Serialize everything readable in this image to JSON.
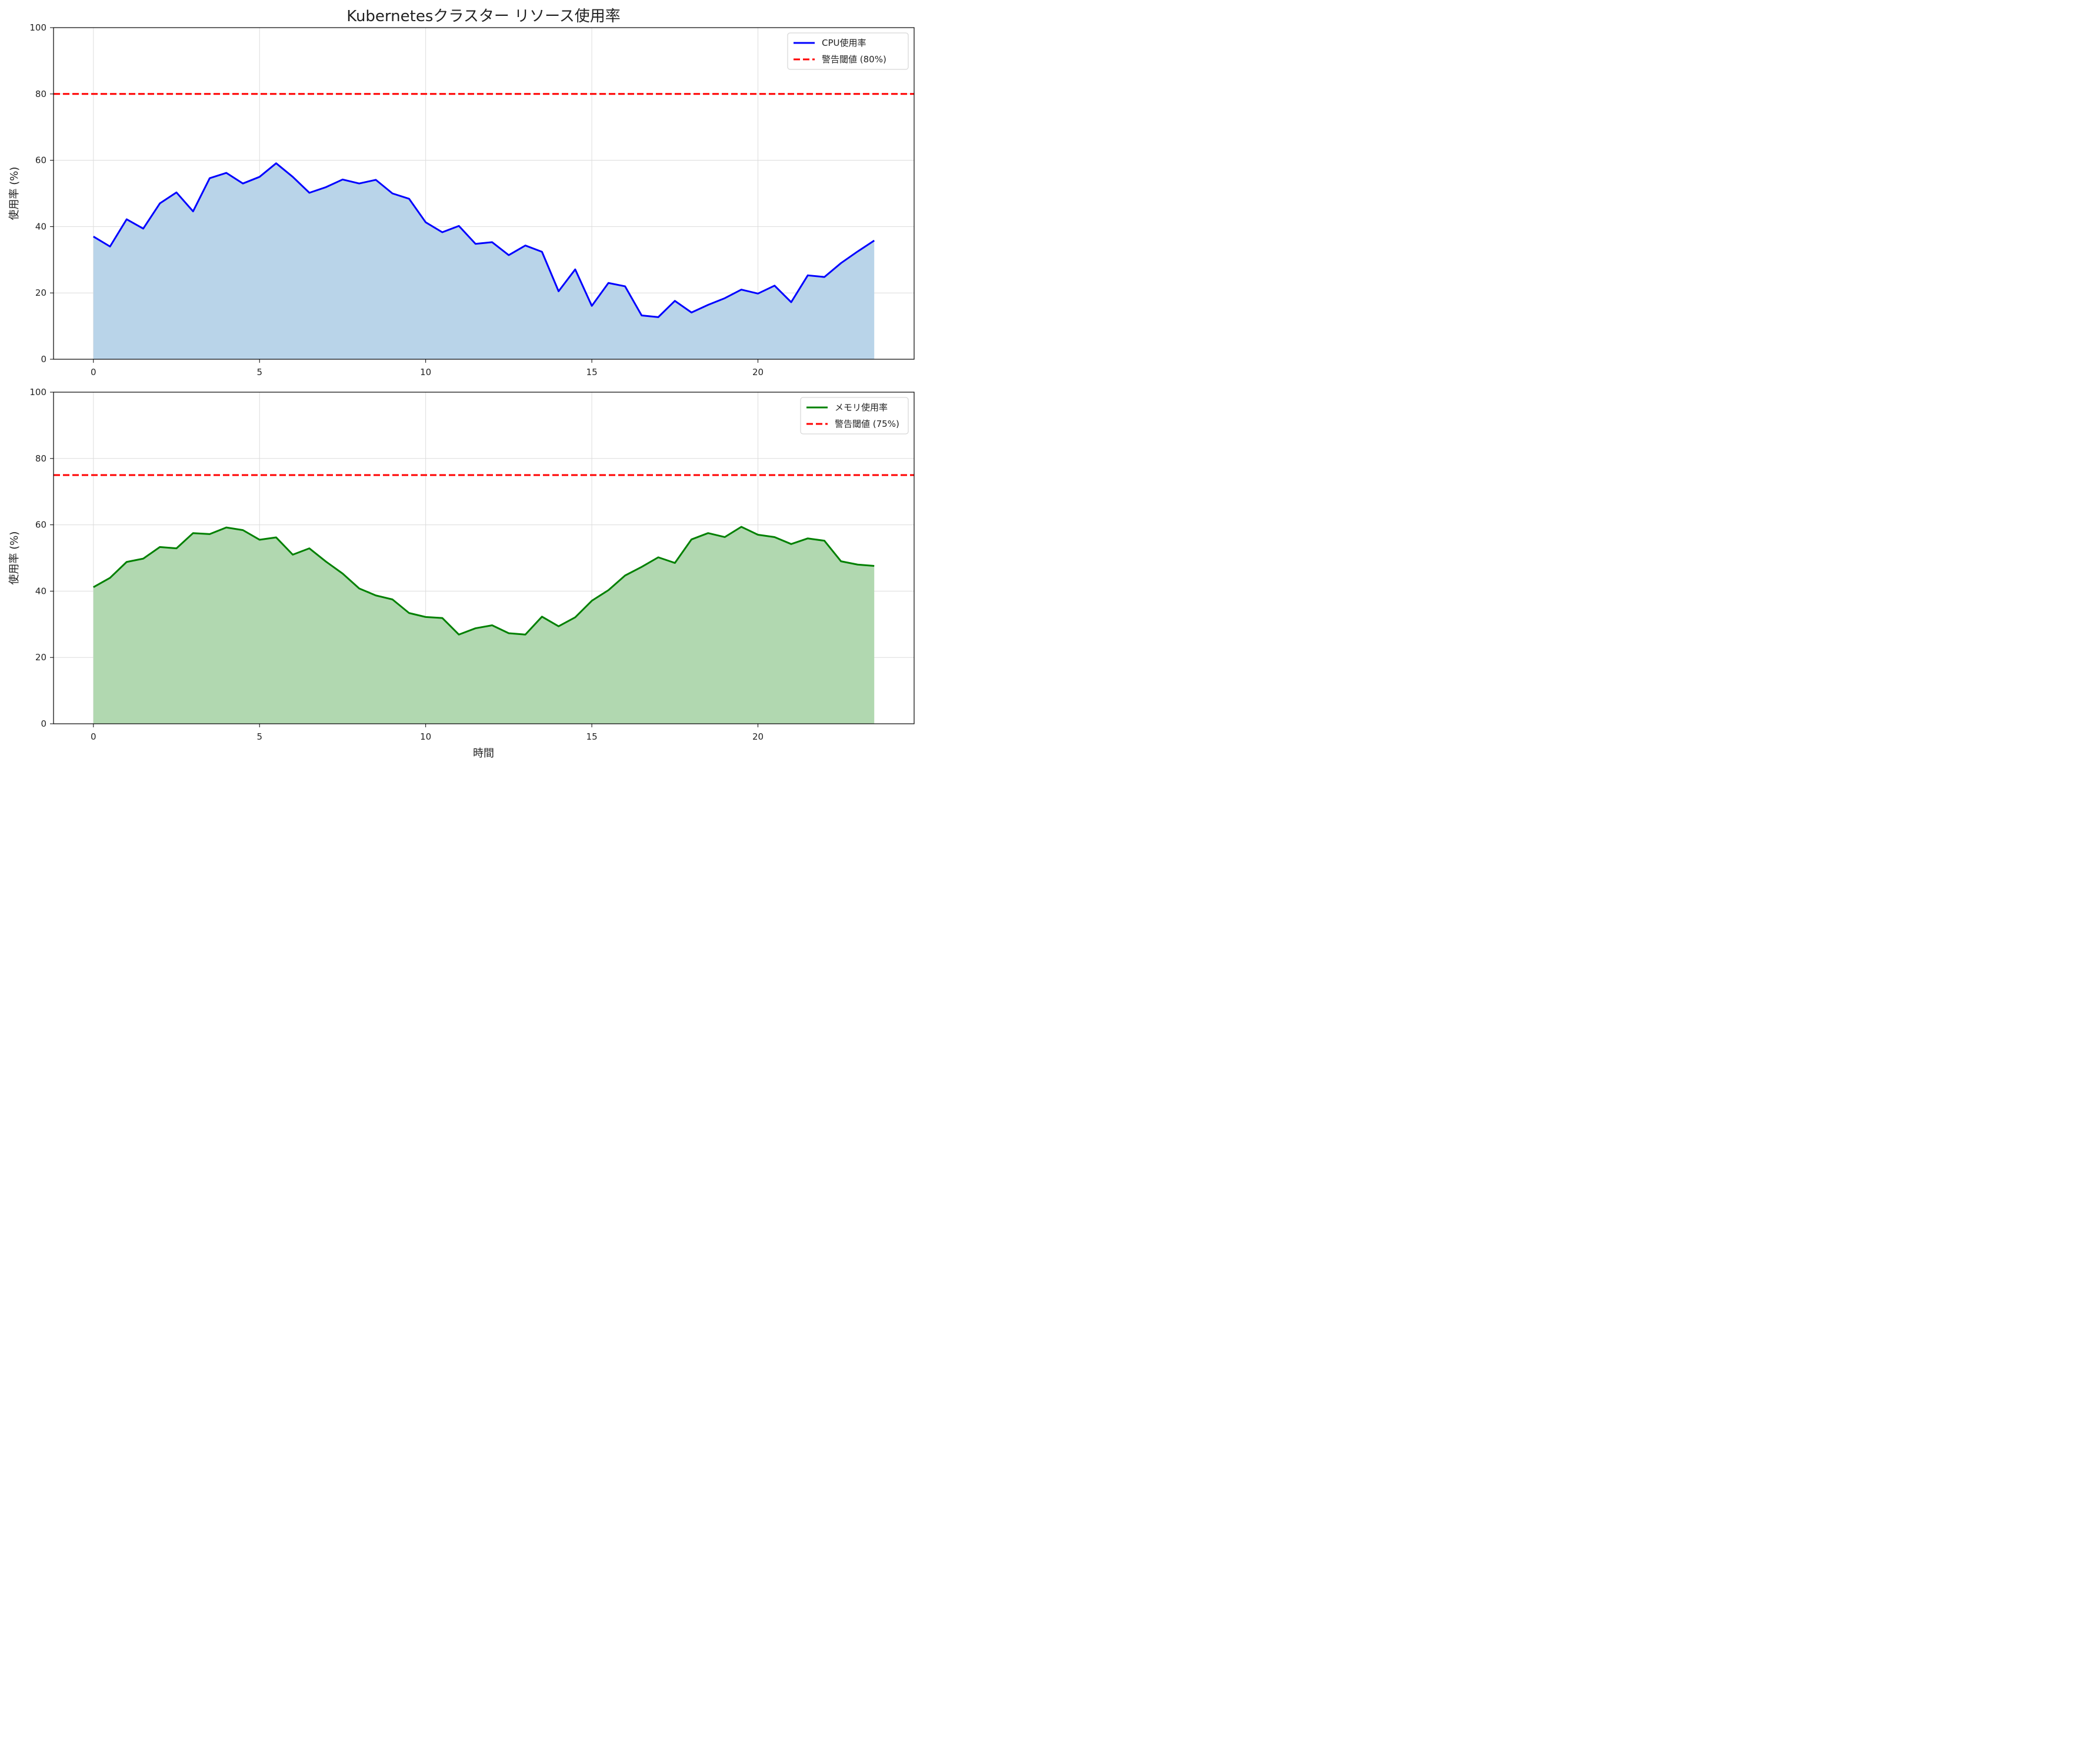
{
  "title": "Kubernetesクラスター リソース使用率",
  "xlabel": "時間",
  "chart_data": [
    {
      "type": "area",
      "ylabel": "使用率 (%)",
      "xlim": [
        -1.2,
        24.7
      ],
      "ylim": [
        0,
        100
      ],
      "xticks": [
        0,
        5,
        10,
        15,
        20
      ],
      "yticks": [
        0,
        20,
        40,
        60,
        80,
        100
      ],
      "grid": true,
      "legend_position": "top-right",
      "series": {
        "name": "CPU使用率",
        "color": "#0000ff",
        "fill_color": "#b9d4e9",
        "x": [
          0,
          0.5,
          1,
          1.5,
          2,
          2.5,
          3,
          3.5,
          4,
          4.5,
          5,
          5.5,
          6,
          6.5,
          7,
          7.5,
          8,
          8.5,
          9,
          9.5,
          10,
          10.5,
          11,
          11.5,
          12,
          12.5,
          13,
          13.5,
          14,
          14.5,
          15,
          15.5,
          16,
          16.5,
          17,
          17.5,
          18,
          18.5,
          19,
          19.5,
          20,
          20.5,
          21,
          21.5,
          22,
          22.5,
          23,
          23.5
        ],
        "y": [
          37,
          34,
          42.2,
          39.4,
          47,
          50.3,
          44.6,
          54.6,
          56.2,
          53,
          55,
          59.1,
          55,
          50.2,
          51.9,
          54.2,
          53,
          54.1,
          50,
          48.4,
          41.3,
          38.3,
          40.2,
          34.8,
          35.3,
          31.4,
          34.3,
          32.4,
          20.5,
          27.1,
          16.1,
          23,
          22,
          13.2,
          12.7,
          17.6,
          14.1,
          16.4,
          18.4,
          21,
          19.8,
          22.2,
          17.2,
          25.3,
          24.8,
          29,
          32.5,
          35.8
        ]
      },
      "threshold": {
        "name": "警告閾値 (80%)",
        "value": 80,
        "color": "#ff0000"
      }
    },
    {
      "type": "area",
      "ylabel": "使用率 (%)",
      "xlim": [
        -1.2,
        24.7
      ],
      "ylim": [
        0,
        100
      ],
      "xticks": [
        0,
        5,
        10,
        15,
        20
      ],
      "yticks": [
        0,
        20,
        40,
        60,
        80,
        100
      ],
      "grid": true,
      "legend_position": "top-right",
      "series": {
        "name": "メモリ使用率",
        "color": "#008000",
        "fill_color": "#b1d8b0",
        "x": [
          0,
          0.5,
          1,
          1.5,
          2,
          2.5,
          3,
          3.5,
          4,
          4.5,
          5,
          5.5,
          6,
          6.5,
          7,
          7.5,
          8,
          8.5,
          9,
          9.5,
          10,
          10.5,
          11,
          11.5,
          12,
          12.5,
          13,
          13.5,
          14,
          14.5,
          15,
          15.5,
          16,
          16.5,
          17,
          17.5,
          18,
          18.5,
          19,
          19.5,
          20,
          20.5,
          21,
          21.5,
          22,
          22.5,
          23,
          23.5
        ],
        "y": [
          41.2,
          44,
          48.8,
          49.8,
          53.3,
          52.9,
          57.5,
          57.2,
          59.2,
          58.4,
          55.5,
          56.2,
          51,
          52.9,
          48.9,
          45.3,
          40.8,
          38.7,
          37.5,
          33.4,
          32.2,
          31.9,
          26.9,
          28.8,
          29.7,
          27.3,
          26.9,
          32.3,
          29.4,
          32.1,
          37.1,
          40.3,
          44.7,
          47.3,
          50.2,
          48.5,
          55.6,
          57.5,
          56.3,
          59.4,
          57,
          56.3,
          54.2,
          55.9,
          55.2,
          49,
          48,
          47.6
        ]
      },
      "threshold": {
        "name": "警告閾値 (75%)",
        "value": 75,
        "color": "#ff0000"
      }
    }
  ]
}
